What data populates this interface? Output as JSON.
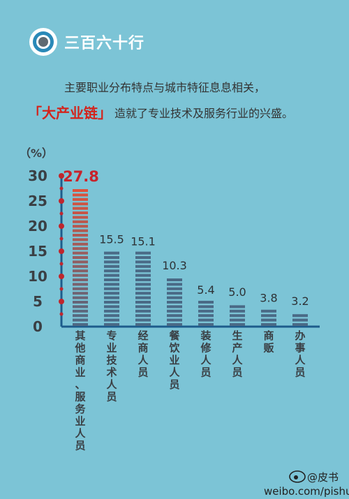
{
  "header": {
    "title": "三百六十行"
  },
  "intro": {
    "line1": "主要职业分布特点与城市特征息息相关，",
    "highlight": "「大产业链」",
    "line2": "造就了专业技术及服务行业的兴盛。"
  },
  "watermark": {
    "brand": "@皮书",
    "url": "weibo.com/pishu"
  },
  "chart_data": {
    "type": "bar",
    "ylabel": "（%）",
    "ylim": [
      0,
      30
    ],
    "yticks": [
      0,
      5,
      10,
      15,
      20,
      25,
      30
    ],
    "categories": [
      "其他商业、服务业人员",
      "专业技术人员",
      "经商人员",
      "餐饮业人员",
      "装修人员",
      "生产人员",
      "商贩",
      "办事人员"
    ],
    "values": [
      27.8,
      15.5,
      15.1,
      10.3,
      5.4,
      5.0,
      3.8,
      3.2
    ],
    "value_labels": [
      "27.8",
      "15.5",
      "15.1",
      "10.3",
      "5.4",
      "5.0",
      "3.8",
      "3.2"
    ],
    "highlight_index": 0,
    "colors": {
      "bar": "#4a6a86",
      "highlight_bar_top": "#e0513a",
      "highlight_bar_bottom": "#4a6a86",
      "highlight_label": "#c8232b",
      "axis": "#1d5c8c",
      "axis_dot": "#c0262d"
    }
  }
}
